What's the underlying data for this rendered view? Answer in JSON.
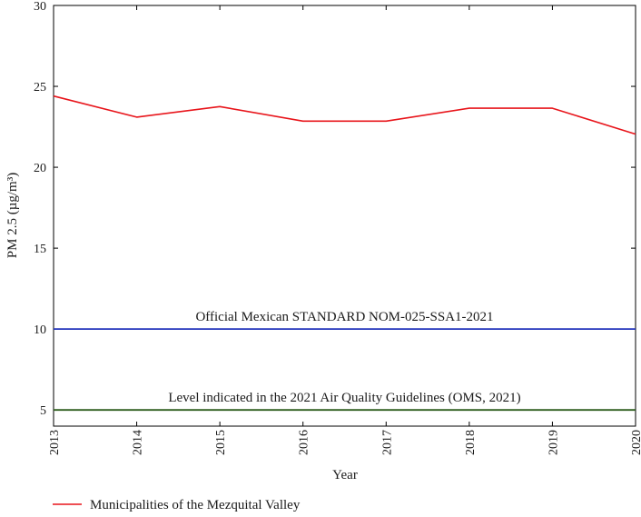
{
  "chart_data": {
    "type": "line",
    "title": "",
    "xlabel": "Year",
    "ylabel": "PM 2.5 (µg/m³)",
    "ylim": [
      4,
      30
    ],
    "yticks": [
      5,
      10,
      15,
      20,
      25,
      30
    ],
    "x": [
      2013,
      2014,
      2015,
      2016,
      2017,
      2018,
      2019,
      2020
    ],
    "series": [
      {
        "name": "Municipalities of the Mezquital Valley",
        "color": "#e8151b",
        "values": [
          24.4,
          23.1,
          23.75,
          22.85,
          22.85,
          23.65,
          23.65,
          22.05
        ]
      }
    ],
    "reference_lines": [
      {
        "value": 10,
        "label": "Official Mexican STANDARD NOM-025-SSA1-2021",
        "color": "#2233bb"
      },
      {
        "value": 5,
        "label": "Level indicated in the 2021 Air Quality Guidelines (OMS, 2021)",
        "color": "#2e5e1e"
      }
    ],
    "grid": false,
    "legend_position": "bottom-left"
  }
}
